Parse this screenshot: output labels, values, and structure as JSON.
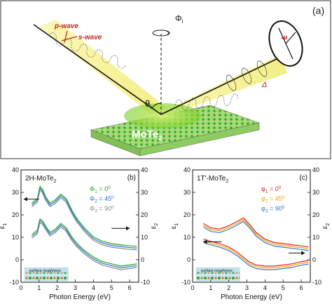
{
  "panel_a": {
    "label": "(a)",
    "p_wave": "p-wave",
    "s_wave": "s-wave",
    "phi_i": "Φ",
    "phi_i_sub": "i",
    "theta_i": "θ",
    "theta_i_sub": "i",
    "psi": "Ψ",
    "delta": "Δ",
    "material": "MoTe",
    "material_sub": "2"
  },
  "colors": {
    "green": "#22a322",
    "red": "#e02020",
    "orange": "#f2a300",
    "blue": "#2a78d6",
    "gray": "#888888",
    "beam": "#f4f08a"
  },
  "chart_data": [
    {
      "type": "line",
      "panel_label": "(b)",
      "title": "2H-MoTe",
      "title_sub": "2",
      "xlabel": "Photon Energy (eV)",
      "ylabel_left": "ε",
      "ylabel_left_sub": "1",
      "ylabel_right": "ε",
      "ylabel_right_sub": "2",
      "xlim": [
        0,
        6.5
      ],
      "xticks": [
        "0",
        "1",
        "2",
        "3",
        "4",
        "5",
        "6"
      ],
      "y1lim": [
        -10,
        40
      ],
      "y1ticks": [
        "-10",
        "0",
        "10",
        "20",
        "30",
        "40"
      ],
      "y2lim": [
        -10,
        40
      ],
      "y2ticks": [
        "-10",
        "0",
        "10",
        "20",
        "30",
        "40"
      ],
      "inset_text": "surface roughness",
      "legend": [
        {
          "sym": "Φ",
          "sub": "1",
          "val": "= 0",
          "deg": "0",
          "color": "#22a322"
        },
        {
          "sym": "Φ",
          "sub": "2",
          "val": "= 45",
          "deg": "0",
          "color": "#2a78d6"
        },
        {
          "sym": "Φ",
          "sub": "3",
          "val": "= 90",
          "deg": "0",
          "color": "#888888"
        }
      ],
      "series": [
        {
          "axis": "left",
          "color": "#22a322",
          "x": [
            0.6,
            0.9,
            1.05,
            1.2,
            1.35,
            1.6,
            1.9,
            2.2,
            2.5,
            2.8,
            3.1,
            3.5,
            4.0,
            4.5,
            5.0,
            5.5,
            6.0,
            6.4
          ],
          "y": [
            24,
            26,
            31.5,
            30,
            27,
            24,
            25.5,
            28,
            26,
            21,
            17,
            13,
            9,
            7,
            6,
            5.5,
            5,
            4.8
          ]
        },
        {
          "axis": "right",
          "color": "#2a78d6",
          "x": [
            0.6,
            0.9,
            1.05,
            1.2,
            1.35,
            1.6,
            1.9,
            2.2,
            2.5,
            2.8,
            3.1,
            3.5,
            4.0,
            4.5,
            5.0,
            5.5,
            6.0,
            6.4
          ],
          "y": [
            10,
            12,
            17,
            16,
            14,
            11,
            12.5,
            15,
            13,
            9,
            6,
            3,
            0,
            -2,
            -3,
            -4,
            -3.5,
            -3
          ]
        }
      ]
    },
    {
      "type": "line",
      "panel_label": "(c)",
      "title": "1T'-MoTe",
      "title_sub": "2",
      "xlabel": "Photon Energy (eV)",
      "ylabel_left": "ε",
      "ylabel_left_sub": "1",
      "ylabel_right": "ε",
      "ylabel_right_sub": "2",
      "xlim": [
        0,
        6.5
      ],
      "xticks": [
        "0",
        "1",
        "2",
        "3",
        "4",
        "5",
        "6"
      ],
      "y1lim": [
        -10,
        40
      ],
      "y1ticks": [
        "-10",
        "0",
        "10",
        "20",
        "30",
        "40"
      ],
      "y2lim": [
        -10,
        40
      ],
      "y2ticks": [
        "-10",
        "0",
        "10",
        "20",
        "30",
        "40"
      ],
      "inset_text": "surface roughness",
      "legend": [
        {
          "sym": "φ",
          "sub": "1",
          "val": "= 0",
          "deg": "0",
          "color": "#e02020"
        },
        {
          "sym": "φ",
          "sub": "2",
          "val": "= 45",
          "deg": "0",
          "color": "#f2a300"
        },
        {
          "sym": "φ",
          "sub": "3",
          "val": "= 90",
          "deg": "0",
          "color": "#2a78d6"
        }
      ],
      "series": [
        {
          "axis": "right",
          "color": "#e02020",
          "x": [
            0.6,
            1.0,
            1.5,
            2.0,
            2.5,
            2.8,
            3.1,
            3.5,
            4.0,
            4.5,
            5.0,
            5.5,
            6.0,
            6.4
          ],
          "y": [
            15,
            13,
            12.5,
            14,
            16,
            17.5,
            15,
            11,
            8,
            6.5,
            6,
            5.5,
            5,
            4.5
          ]
        },
        {
          "axis": "left",
          "color": "#2a78d6",
          "x": [
            0.6,
            1.0,
            1.5,
            2.0,
            2.5,
            2.8,
            3.1,
            3.5,
            4.0,
            4.5,
            5.0,
            5.5,
            6.0,
            6.4
          ],
          "y": [
            8,
            7,
            6,
            4.5,
            2,
            0,
            -2,
            -3.5,
            -4,
            -4,
            -3.5,
            -3,
            -2,
            -1.5
          ]
        }
      ]
    }
  ]
}
